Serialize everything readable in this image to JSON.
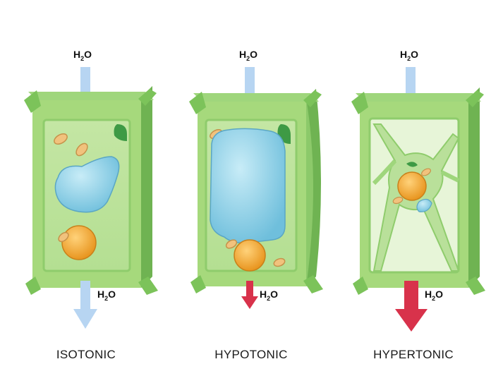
{
  "labels": {
    "water": "H",
    "water_sub": "2",
    "water_tail": "O"
  },
  "cells": [
    {
      "name": "ISOTONIC"
    },
    {
      "name": "HYPOTONIC"
    },
    {
      "name": "HYPERTONIC"
    }
  ],
  "colors": {
    "wall_front": "#a6d97c",
    "wall_side": "#7cc35a",
    "wall_dark": "#5ea844",
    "cytoplasm": "#cdeab0",
    "vacuole": "#8fd0e6",
    "nucleus": "#f3a93a",
    "chloroplast": "#3e9a45",
    "arrow_in": "#b7d5f2",
    "arrow_out_red": "#d8324b"
  }
}
